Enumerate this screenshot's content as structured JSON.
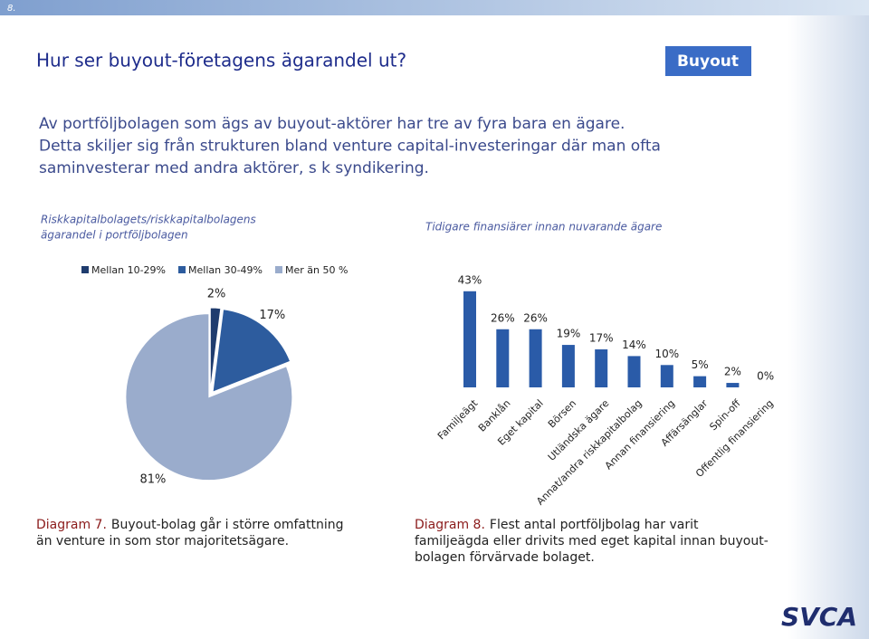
{
  "slide_number": "8.",
  "title": "Hur ser buyout-företagens ägarandel ut?",
  "badge": "Buyout",
  "intro": [
    "Av portföljbolagen som ägs av buyout-aktörer har tre av fyra bara en ägare.",
    "Detta skiljer sig från strukturen bland venture capital-investeringar där man ofta",
    "saminvesterar med andra aktörer, s k syndikering."
  ],
  "chart_data": [
    {
      "type": "pie",
      "title": [
        "Riskkapitalbolagets/riskkapitalbolagens",
        "ägarandel i portföljbolagen"
      ],
      "categories": [
        "Mellan 10-29%",
        "Mellan 30-49%",
        "Mer än 50 %"
      ],
      "values": [
        2,
        17,
        81
      ],
      "value_labels": [
        "2%",
        "17%",
        "81%"
      ],
      "colors": [
        "#1f3c6e",
        "#2d5c9e",
        "#9aaccc"
      ],
      "caption_label": "Diagram 7.",
      "caption": [
        "Buyout-bolag går i större omfattning",
        "än venture in som stor majoritetsägare."
      ]
    },
    {
      "type": "bar",
      "title": [
        "Tidigare finansiärer innan nuvarande ägare"
      ],
      "categories": [
        "Familjeägt",
        "Banklån",
        "Eget kapital",
        "Börsen",
        "Utländska ägare",
        "Annat/andra riskkapitalbolag",
        "Annan finansiering",
        "Affärsänglar",
        "Spin-off",
        "Offentlig finansiering"
      ],
      "values": [
        43,
        26,
        26,
        19,
        17,
        14,
        10,
        5,
        2,
        0
      ],
      "value_labels": [
        "43%",
        "26%",
        "26%",
        "19%",
        "17%",
        "14%",
        "10%",
        "5%",
        "2%",
        "0%"
      ],
      "color": "#2a5ba8",
      "caption_label": "Diagram 8.",
      "caption": [
        "Flest antal portföljbolag har varit",
        "familjeägda eller drivits med eget kapital innan buyout-",
        "bolagen förvärvade bolaget."
      ]
    }
  ],
  "logo": "SVCA"
}
